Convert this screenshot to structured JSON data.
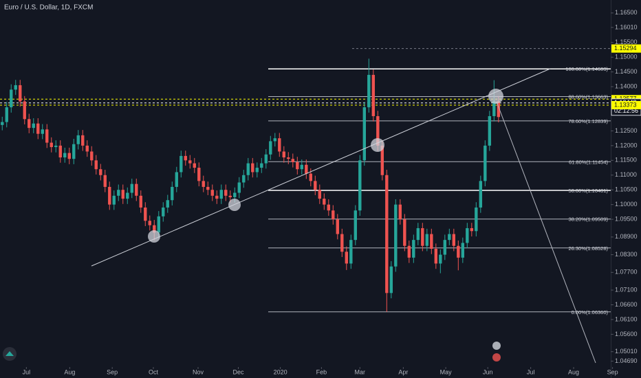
{
  "chart_data": {
    "type": "candlestick",
    "title": "Euro / U.S. Dollar, 1D, FXCM",
    "ylim": [
      1.0435,
      1.1694
    ],
    "xlim": [
      -0.5,
      136.1
    ],
    "yticks": [
      {
        "value": 1.165,
        "label": "1.16500"
      },
      {
        "value": 1.1601,
        "label": "1.16010"
      },
      {
        "value": 1.155,
        "label": "1.15500"
      },
      {
        "value": 1.15,
        "label": "1.15000"
      },
      {
        "value": 1.145,
        "label": "1.14500"
      },
      {
        "value": 1.14,
        "label": "1.14000"
      },
      {
        "value": 1.125,
        "label": "1.12500"
      },
      {
        "value": 1.12,
        "label": "1.12000"
      },
      {
        "value": 1.115,
        "label": "1.11500"
      },
      {
        "value": 1.11,
        "label": "1.11000"
      },
      {
        "value": 1.105,
        "label": "1.10500"
      },
      {
        "value": 1.1,
        "label": "1.10000"
      },
      {
        "value": 1.095,
        "label": "1.09500"
      },
      {
        "value": 1.089,
        "label": "1.08900"
      },
      {
        "value": 1.083,
        "label": "1.08300"
      },
      {
        "value": 1.077,
        "label": "1.07700"
      },
      {
        "value": 1.071,
        "label": "1.07100"
      },
      {
        "value": 1.066,
        "label": "1.06600"
      },
      {
        "value": 1.061,
        "label": "1.06100"
      },
      {
        "value": 1.056,
        "label": "1.05600"
      },
      {
        "value": 1.0501,
        "label": "1.05010"
      },
      {
        "value": 1.0469,
        "label": "1.04690"
      }
    ],
    "xticks": [
      {
        "value": 5.4,
        "label": "Jul"
      },
      {
        "value": 15.1,
        "label": "Aug"
      },
      {
        "value": 24.6,
        "label": "Sep"
      },
      {
        "value": 33.8,
        "label": "Oct"
      },
      {
        "value": 43.8,
        "label": "Nov"
      },
      {
        "value": 52.8,
        "label": "Dec"
      },
      {
        "value": 62.2,
        "label": "2020"
      },
      {
        "value": 71.4,
        "label": "Feb"
      },
      {
        "value": 80,
        "label": "Mar"
      },
      {
        "value": 89.7,
        "label": "Apr"
      },
      {
        "value": 99.2,
        "label": "May"
      },
      {
        "value": 108.6,
        "label": "Jun"
      },
      {
        "value": 118.2,
        "label": "Jul"
      },
      {
        "value": 127.8,
        "label": "Aug"
      },
      {
        "value": 136.5,
        "label": "Sep"
      }
    ],
    "up_color": "#26a69a",
    "down_color": "#ef5350",
    "series": [
      {
        "open": [
          1.127,
          1.128,
          1.133,
          1.139,
          1.1405,
          1.135,
          1.129,
          1.126,
          1.1275,
          1.124,
          1.1255,
          1.121,
          1.1195,
          1.12,
          1.116,
          1.1175,
          1.1155,
          1.1205,
          1.1235,
          1.12,
          1.118,
          1.115,
          1.112,
          1.11,
          1.106,
          1.1,
          1.103,
          1.105,
          1.102,
          1.104,
          1.107,
          1.103,
          1.099,
          1.0945,
          1.093,
          1.0905,
          1.096,
          1.099,
          1.1015,
          1.106,
          1.111,
          1.1165,
          1.115,
          1.114,
          1.1125,
          1.108,
          1.106,
          1.105,
          1.103,
          1.102,
          1.105,
          1.103,
          1.1025,
          1.104,
          1.1075,
          1.11,
          1.114,
          1.111,
          1.1125,
          1.114,
          1.117,
          1.1215,
          1.1225,
          1.118,
          1.116,
          1.1155,
          1.1144,
          1.112,
          1.1135,
          1.1105,
          1.108,
          1.105,
          1.102,
          1.1,
          1.098,
          1.095,
          1.09,
          1.084,
          1.08,
          1.088,
          1.098,
          1.115,
          1.133,
          1.144,
          1.13,
          1.12,
          1.11,
          1.07,
          1.079,
          1.1,
          1.095,
          1.086,
          1.082,
          1.088,
          1.092,
          1.086,
          1.09,
          1.085,
          1.08,
          1.083,
          1.088,
          1.09,
          1.086,
          1.082,
          1.087,
          1.092,
          1.091,
          1.099,
          1.108,
          1.12,
          1.13,
          1.135
        ],
        "high": [
          1.1298,
          1.1348,
          1.1408,
          1.1423,
          1.1423,
          1.1368,
          1.1308,
          1.1293,
          1.1293,
          1.1273,
          1.1273,
          1.1228,
          1.1218,
          1.1218,
          1.1193,
          1.1193,
          1.1223,
          1.1253,
          1.1253,
          1.1218,
          1.1198,
          1.1168,
          1.1138,
          1.1118,
          1.1078,
          1.1048,
          1.1068,
          1.1068,
          1.1058,
          1.1088,
          1.1088,
          1.1048,
          1.1008,
          1.0963,
          1.0948,
          1.0978,
          1.1008,
          1.1033,
          1.1078,
          1.1128,
          1.1183,
          1.1183,
          1.1168,
          1.1158,
          1.1143,
          1.1098,
          1.1078,
          1.1068,
          1.1048,
          1.1068,
          1.1068,
          1.1048,
          1.1058,
          1.1093,
          1.1118,
          1.1158,
          1.1158,
          1.1143,
          1.1158,
          1.1188,
          1.1233,
          1.1243,
          1.1243,
          1.1198,
          1.1178,
          1.1173,
          1.1162,
          1.1153,
          1.1153,
          1.1123,
          1.1098,
          1.1068,
          1.1038,
          1.1018,
          1.0998,
          1.0968,
          1.0918,
          1.0858,
          1.0898,
          1.0998,
          1.1168,
          1.1348,
          1.1495,
          1.1458,
          1.1318,
          1.1218,
          1.1118,
          1.0808,
          1.1018,
          1.1018,
          1.0968,
          1.0878,
          1.0898,
          1.0938,
          1.0938,
          1.0918,
          1.0918,
          1.0868,
          1.0848,
          1.0898,
          1.0918,
          1.0918,
          1.0878,
          1.0888,
          1.0938,
          1.0938,
          1.1008,
          1.1098,
          1.1218,
          1.1318,
          1.1422,
          1.1368
        ],
        "low": [
          1.1252,
          1.1262,
          1.1312,
          1.1372,
          1.1332,
          1.1272,
          1.1242,
          1.1242,
          1.1222,
          1.1222,
          1.1192,
          1.1177,
          1.1177,
          1.1142,
          1.1142,
          1.1137,
          1.1137,
          1.1187,
          1.1182,
          1.1162,
          1.1132,
          1.1102,
          1.1082,
          1.1042,
          1.0982,
          1.0982,
          1.1012,
          1.1002,
          1.1002,
          1.1022,
          1.1012,
          1.0972,
          1.0927,
          1.0912,
          1.0879,
          1.0887,
          1.0942,
          1.0972,
          1.0997,
          1.1042,
          1.1092,
          1.1132,
          1.1122,
          1.1107,
          1.1062,
          1.1042,
          1.1032,
          1.1012,
          1.1002,
          1.1002,
          1.1012,
          1.1007,
          1.1007,
          1.1022,
          1.1057,
          1.1082,
          1.1092,
          1.1092,
          1.1107,
          1.1122,
          1.1152,
          1.1197,
          1.1162,
          1.1142,
          1.1137,
          1.1126,
          1.1102,
          1.1102,
          1.1087,
          1.1062,
          1.1032,
          1.1002,
          1.0982,
          1.0962,
          1.0932,
          1.0882,
          1.0822,
          1.0778,
          1.0782,
          1.0862,
          1.0962,
          1.1132,
          1.1312,
          1.1282,
          1.1182,
          1.1082,
          1.0636,
          1.0682,
          1.0772,
          1.0932,
          1.0842,
          1.0802,
          1.0802,
          1.0862,
          1.0842,
          1.0842,
          1.0832,
          1.0782,
          1.0767,
          1.0812,
          1.0862,
          1.0842,
          1.0777,
          1.0802,
          1.0852,
          1.0892,
          1.0892,
          1.0972,
          1.1062,
          1.1182,
          1.1282,
          1.1279
        ],
        "close": [
          1.128,
          1.133,
          1.139,
          1.1405,
          1.135,
          1.129,
          1.126,
          1.1275,
          1.124,
          1.1255,
          1.121,
          1.1195,
          1.12,
          1.116,
          1.1175,
          1.1155,
          1.1205,
          1.1235,
          1.12,
          1.118,
          1.115,
          1.112,
          1.11,
          1.106,
          1.1,
          1.103,
          1.105,
          1.102,
          1.104,
          1.107,
          1.103,
          1.099,
          1.0945,
          1.093,
          1.0905,
          1.096,
          1.099,
          1.1015,
          1.106,
          1.111,
          1.1165,
          1.115,
          1.114,
          1.1125,
          1.108,
          1.106,
          1.105,
          1.103,
          1.102,
          1.105,
          1.103,
          1.1025,
          1.104,
          1.1075,
          1.11,
          1.114,
          1.111,
          1.1125,
          1.114,
          1.117,
          1.1215,
          1.1225,
          1.118,
          1.116,
          1.1155,
          1.1144,
          1.112,
          1.1135,
          1.1105,
          1.108,
          1.105,
          1.102,
          1.1,
          1.098,
          1.095,
          1.09,
          1.084,
          1.08,
          1.088,
          1.098,
          1.115,
          1.133,
          1.144,
          1.13,
          1.12,
          1.11,
          1.07,
          1.079,
          1.1,
          1.095,
          1.086,
          1.082,
          1.088,
          1.092,
          1.086,
          1.09,
          1.085,
          1.08,
          1.083,
          1.088,
          1.09,
          1.086,
          1.082,
          1.087,
          1.092,
          1.091,
          1.099,
          1.108,
          1.12,
          1.13,
          1.135,
          1.1297
        ]
      }
    ],
    "fib_levels": [
      {
        "value": 1.14603,
        "label": "100.00%(1.14603)"
      },
      {
        "value": 1.13663,
        "label": "88.60%(1.13663)"
      },
      {
        "value": 1.12839,
        "label": "78.60%(1.12839)"
      },
      {
        "value": 1.11454,
        "label": "61.80%(1.11454)"
      },
      {
        "value": 1.10481,
        "label": "50.00%(1.10481)"
      },
      {
        "value": 1.09509,
        "label": "38.20%(1.09509)"
      },
      {
        "value": 1.08528,
        "label": "26.30%(1.08528)"
      },
      {
        "value": 1.0636,
        "label": "0.00%(1.06360)"
      }
    ],
    "price_lines": [
      {
        "value": 1.15294,
        "label": "1.15294",
        "color": "#ffff00"
      },
      {
        "value": 1.13577,
        "label": "1.13577",
        "color": "#ffff00"
      },
      {
        "value": 1.13448,
        "label": "1.13448",
        "color": "#ffffff"
      },
      {
        "value": 1.13373,
        "label": "1.13373",
        "color": "#ffff00"
      }
    ],
    "countdown": "02:12:56"
  }
}
